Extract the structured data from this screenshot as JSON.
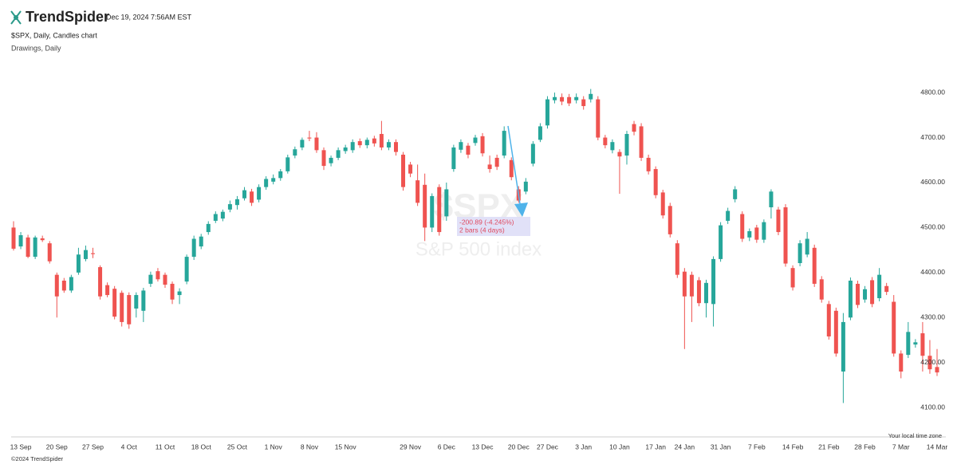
{
  "header": {
    "brand": "TrendSpider",
    "timestamp": "Dec 19, 2024 7:56AM EST"
  },
  "footer": "©2024 TrendSpider",
  "timezone_note": "Your local time zone",
  "chart_data": {
    "type": "candlestick",
    "title": "$SPX, Daily, Candles chart",
    "subtitle": "Drawings, Daily",
    "watermark": {
      "symbol": "$SPX",
      "name": "S&P 500 index"
    },
    "annotation": {
      "change": "-200.89 (-4.245%)",
      "span": "2 bars (4 days)"
    },
    "up_color": "#26a69a",
    "down_color": "#ef5350",
    "ylim": [
      4040,
      4864
    ],
    "yticks": [
      {
        "value": 4100,
        "label": "4100.00"
      },
      {
        "value": 4200,
        "label": "4200.00"
      },
      {
        "value": 4300,
        "label": "4300.00"
      },
      {
        "value": 4400,
        "label": "4400.00"
      },
      {
        "value": 4500,
        "label": "4500.00"
      },
      {
        "value": 4600,
        "label": "4600.00"
      },
      {
        "value": 4700,
        "label": "4700.00"
      },
      {
        "value": 4800,
        "label": "4800.00"
      }
    ],
    "categories": [
      null,
      "13 Sep",
      null,
      null,
      null,
      null,
      "20 Sep",
      null,
      null,
      null,
      null,
      "27 Sep",
      null,
      null,
      null,
      null,
      "4 Oct",
      null,
      null,
      null,
      null,
      "11 Oct",
      null,
      null,
      null,
      null,
      "18 Oct",
      null,
      null,
      null,
      null,
      "25 Oct",
      null,
      null,
      null,
      null,
      "1 Nov",
      null,
      null,
      null,
      null,
      "8 Nov",
      null,
      null,
      null,
      null,
      "15 Nov",
      null,
      null,
      null,
      null,
      null,
      null,
      null,
      null,
      "29 Nov",
      null,
      null,
      null,
      null,
      "6 Dec",
      null,
      null,
      null,
      null,
      "13 Dec",
      null,
      null,
      null,
      null,
      "20 Dec",
      null,
      null,
      null,
      "27 Dec",
      null,
      null,
      null,
      null,
      "3 Jan",
      null,
      null,
      null,
      null,
      "10 Jan",
      null,
      null,
      null,
      null,
      "17 Jan",
      null,
      null,
      null,
      "24 Jan",
      null,
      null,
      null,
      null,
      "31 Jan",
      null,
      null,
      null,
      null,
      "7 Feb",
      null,
      null,
      null,
      null,
      "14 Feb",
      null,
      null,
      null,
      null,
      "21 Feb",
      null,
      null,
      null,
      null,
      "28 Feb",
      null,
      null,
      null,
      null,
      "7 Mar",
      null,
      null,
      null,
      null,
      "14 Mar"
    ],
    "ohlc": [
      [
        4500,
        4514,
        4449,
        4453
      ],
      [
        4458,
        4490,
        4452,
        4483
      ],
      [
        4478,
        4484,
        4432,
        4435
      ],
      [
        4435,
        4482,
        4430,
        4478
      ],
      [
        4476,
        4482,
        4468,
        4472
      ],
      [
        4465,
        4470,
        4420,
        4425
      ],
      [
        4395,
        4400,
        4300,
        4347
      ],
      [
        4382,
        4388,
        4355,
        4360
      ],
      [
        4360,
        4395,
        4355,
        4390
      ],
      [
        4400,
        4455,
        4395,
        4440
      ],
      [
        4430,
        4460,
        4425,
        4450
      ],
      [
        4443,
        4455,
        4432,
        4441
      ],
      [
        4412,
        4416,
        4340,
        4347
      ],
      [
        4372,
        4378,
        4345,
        4350
      ],
      [
        4364,
        4370,
        4296,
        4302
      ],
      [
        4355,
        4360,
        4280,
        4290
      ],
      [
        4350,
        4356,
        4275,
        4285
      ],
      [
        4320,
        4356,
        4300,
        4350
      ],
      [
        4315,
        4366,
        4290,
        4360
      ],
      [
        4375,
        4402,
        4368,
        4395
      ],
      [
        4403,
        4410,
        4380,
        4385
      ],
      [
        4395,
        4400,
        4366,
        4373
      ],
      [
        4375,
        4380,
        4330,
        4340
      ],
      [
        4350,
        4365,
        4330,
        4358
      ],
      [
        4380,
        4440,
        4374,
        4435
      ],
      [
        4435,
        4482,
        4428,
        4475
      ],
      [
        4458,
        4486,
        4452,
        4480
      ],
      [
        4490,
        4514,
        4484,
        4508
      ],
      [
        4515,
        4536,
        4510,
        4530
      ],
      [
        4520,
        4540,
        4514,
        4535
      ],
      [
        4540,
        4560,
        4534,
        4552
      ],
      [
        4550,
        4570,
        4540,
        4563
      ],
      [
        4565,
        4590,
        4560,
        4583
      ],
      [
        4580,
        4586,
        4548,
        4555
      ],
      [
        4562,
        4596,
        4556,
        4590
      ],
      [
        4590,
        4614,
        4584,
        4608
      ],
      [
        4602,
        4618,
        4596,
        4610
      ],
      [
        4610,
        4630,
        4604,
        4625
      ],
      [
        4625,
        4662,
        4620,
        4656
      ],
      [
        4660,
        4680,
        4654,
        4674
      ],
      [
        4678,
        4700,
        4672,
        4695
      ],
      [
        4700,
        4715,
        4692,
        4698
      ],
      [
        4700,
        4712,
        4666,
        4672
      ],
      [
        4672,
        4678,
        4628,
        4637
      ],
      [
        4643,
        4660,
        4636,
        4655
      ],
      [
        4655,
        4678,
        4650,
        4672
      ],
      [
        4670,
        4684,
        4664,
        4678
      ],
      [
        4672,
        4696,
        4666,
        4690
      ],
      [
        4692,
        4698,
        4677,
        4683
      ],
      [
        4683,
        4700,
        4676,
        4695
      ],
      [
        4698,
        4704,
        4680,
        4687
      ],
      [
        4708,
        4737,
        4672,
        4678
      ],
      [
        4678,
        4696,
        4672,
        4690
      ],
      [
        4690,
        4696,
        4660,
        4668
      ],
      [
        4662,
        4668,
        4582,
        4590
      ],
      [
        4640,
        4646,
        4612,
        4620
      ],
      [
        4605,
        4640,
        4548,
        4555
      ],
      [
        4595,
        4620,
        4470,
        4500
      ],
      [
        4500,
        4576,
        4490,
        4570
      ],
      [
        4590,
        4596,
        4482,
        4490
      ],
      [
        4525,
        4600,
        4515,
        4585
      ],
      [
        4630,
        4684,
        4624,
        4678
      ],
      [
        4673,
        4696,
        4666,
        4690
      ],
      [
        4682,
        4688,
        4654,
        4662
      ],
      [
        4688,
        4706,
        4682,
        4700
      ],
      [
        4703,
        4710,
        4658,
        4665
      ],
      [
        4640,
        4660,
        4622,
        4630
      ],
      [
        4655,
        4662,
        4628,
        4635
      ],
      [
        4660,
        4725,
        4654,
        4715
      ],
      [
        4650,
        4656,
        4605,
        4612
      ],
      [
        4585,
        4592,
        4555,
        4560
      ],
      [
        4580,
        4610,
        4574,
        4602
      ],
      [
        4642,
        4692,
        4636,
        4686
      ],
      [
        4695,
        4732,
        4690,
        4725
      ],
      [
        4727,
        4792,
        4720,
        4785
      ],
      [
        4783,
        4800,
        4776,
        4790
      ],
      [
        4790,
        4798,
        4772,
        4780
      ],
      [
        4790,
        4797,
        4770,
        4776
      ],
      [
        4783,
        4798,
        4776,
        4790
      ],
      [
        4785,
        4792,
        4762,
        4770
      ],
      [
        4785,
        4808,
        4778,
        4797
      ],
      [
        4785,
        4792,
        4694,
        4700
      ],
      [
        4700,
        4706,
        4676,
        4683
      ],
      [
        4672,
        4696,
        4665,
        4690
      ],
      [
        4668,
        4674,
        4575,
        4658
      ],
      [
        4660,
        4715,
        4640,
        4708
      ],
      [
        4730,
        4737,
        4705,
        4713
      ],
      [
        4725,
        4732,
        4648,
        4655
      ],
      [
        4655,
        4662,
        4618,
        4625
      ],
      [
        4630,
        4636,
        4565,
        4572
      ],
      [
        4578,
        4584,
        4520,
        4527
      ],
      [
        4548,
        4555,
        4478,
        4485
      ],
      [
        4465,
        4472,
        4388,
        4395
      ],
      [
        4402,
        4410,
        4230,
        4347
      ],
      [
        4395,
        4402,
        4290,
        4347
      ],
      [
        4383,
        4390,
        4325,
        4332
      ],
      [
        4332,
        4384,
        4300,
        4377
      ],
      [
        4330,
        4436,
        4280,
        4430
      ],
      [
        4430,
        4512,
        4424,
        4505
      ],
      [
        4515,
        4544,
        4508,
        4537
      ],
      [
        4563,
        4592,
        4556,
        4585
      ],
      [
        4530,
        4536,
        4468,
        4475
      ],
      [
        4478,
        4498,
        4470,
        4492
      ],
      [
        4500,
        4506,
        4466,
        4473
      ],
      [
        4473,
        4518,
        4466,
        4512
      ],
      [
        4545,
        4585,
        4520,
        4580
      ],
      [
        4540,
        4546,
        4483,
        4490
      ],
      [
        4545,
        4552,
        4413,
        4420
      ],
      [
        4410,
        4416,
        4360,
        4367
      ],
      [
        4421,
        4472,
        4414,
        4465
      ],
      [
        4440,
        4490,
        4434,
        4475
      ],
      [
        4455,
        4462,
        4368,
        4375
      ],
      [
        4385,
        4392,
        4333,
        4340
      ],
      [
        4330,
        4337,
        4251,
        4258
      ],
      [
        4315,
        4322,
        4213,
        4220
      ],
      [
        4180,
        4310,
        4110,
        4290
      ],
      [
        4300,
        4389,
        4294,
        4382
      ],
      [
        4375,
        4382,
        4321,
        4328
      ],
      [
        4340,
        4370,
        4333,
        4363
      ],
      [
        4383,
        4390,
        4323,
        4330
      ],
      [
        4343,
        4410,
        4336,
        4395
      ],
      [
        4370,
        4377,
        4350,
        4357
      ],
      [
        4335,
        4350,
        4213,
        4220
      ],
      [
        4220,
        4227,
        4165,
        4180
      ],
      [
        4217,
        4290,
        4210,
        4268
      ],
      [
        4240,
        4252,
        4233,
        4245
      ],
      [
        4265,
        4290,
        4180,
        4215
      ],
      [
        4215,
        4250,
        4175,
        4185
      ],
      [
        4190,
        4230,
        4170,
        4178
      ]
    ]
  }
}
